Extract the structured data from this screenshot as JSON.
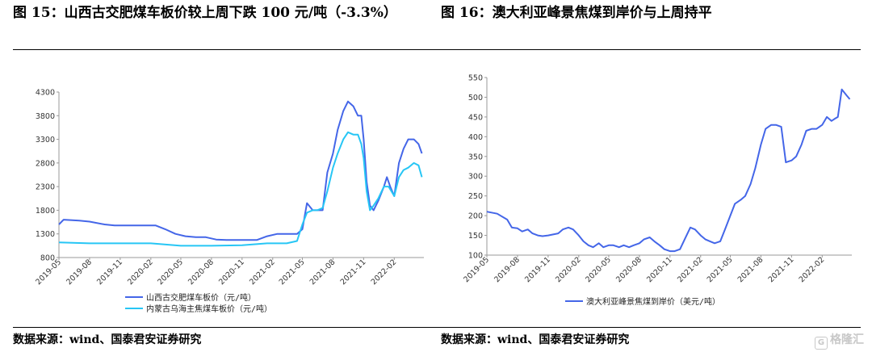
{
  "titles": {
    "left": "图 15：山西古交肥煤车板价较上周下跌 100 元/吨（-3.3%）",
    "right": "图 16：澳大利亚峰景焦煤到岸价与上周持平"
  },
  "sources": {
    "left": "数据来源：wind、国泰君安证券研究",
    "right": "数据来源：wind、国泰君安证券研究"
  },
  "watermark": {
    "icon": "gelonghui-logo-icon",
    "text": "格隆汇"
  },
  "chart_data": [
    {
      "type": "line",
      "ylim": [
        800,
        4300
      ],
      "yticks": [
        800,
        1300,
        1800,
        2300,
        2800,
        3300,
        3800,
        4300
      ],
      "xticks": [
        "2019-05",
        "2019-08",
        "2019-11",
        "2020-02",
        "2020-05",
        "2020-08",
        "2020-11",
        "2021-02",
        "2021-05",
        "2021-08",
        "2021-11",
        "2022-02"
      ],
      "grid": false,
      "legend": "bottom-left",
      "series": [
        {
          "name": "山西古交肥煤车板价（元/吨）",
          "color": "#4466e8",
          "x": [
            "2019-05-01",
            "2019-05-15",
            "2019-07-01",
            "2019-08-01",
            "2019-09-15",
            "2019-10-15",
            "2019-12-01",
            "2020-01-01",
            "2020-02-15",
            "2020-03-15",
            "2020-04-15",
            "2020-05-15",
            "2020-06-15",
            "2020-07-15",
            "2020-08-15",
            "2020-09-15",
            "2020-10-15",
            "2020-11-15",
            "2020-12-15",
            "2021-01-15",
            "2021-02-15",
            "2021-03-15",
            "2021-04-15",
            "2021-05-01",
            "2021-05-15",
            "2021-06-01",
            "2021-06-15",
            "2021-07-01",
            "2021-07-15",
            "2021-08-01",
            "2021-08-15",
            "2021-09-01",
            "2021-09-15",
            "2021-10-01",
            "2021-10-15",
            "2021-10-25",
            "2021-11-01",
            "2021-11-10",
            "2021-11-20",
            "2021-12-01",
            "2021-12-15",
            "2022-01-01",
            "2022-01-10",
            "2022-01-20",
            "2022-02-01",
            "2022-02-15",
            "2022-03-01",
            "2022-03-15",
            "2022-04-01",
            "2022-04-15",
            "2022-04-25"
          ],
          "values": [
            1500,
            1600,
            1580,
            1560,
            1500,
            1480,
            1480,
            1480,
            1480,
            1400,
            1300,
            1250,
            1230,
            1230,
            1180,
            1170,
            1170,
            1170,
            1170,
            1250,
            1300,
            1300,
            1300,
            1400,
            1950,
            1800,
            1800,
            1800,
            2600,
            3000,
            3500,
            3900,
            4100,
            4000,
            3800,
            3800,
            3300,
            2400,
            1900,
            1800,
            2000,
            2300,
            2500,
            2300,
            2100,
            2800,
            3100,
            3300,
            3300,
            3200,
            3000
          ]
        },
        {
          "name": "内蒙古乌海主焦煤车板价（元/吨）",
          "color": "#27c6f5",
          "x": [
            "2019-05-01",
            "2019-08-01",
            "2019-11-01",
            "2020-02-01",
            "2020-05-01",
            "2020-08-01",
            "2020-11-01",
            "2021-01-15",
            "2021-03-15",
            "2021-04-15",
            "2021-05-01",
            "2021-05-15",
            "2021-06-01",
            "2021-06-15",
            "2021-07-01",
            "2021-07-15",
            "2021-08-01",
            "2021-08-15",
            "2021-09-01",
            "2021-09-15",
            "2021-10-01",
            "2021-10-15",
            "2021-10-25",
            "2021-11-01",
            "2021-11-10",
            "2021-11-20",
            "2021-12-01",
            "2021-12-15",
            "2022-01-01",
            "2022-01-15",
            "2022-02-01",
            "2022-02-15",
            "2022-03-01",
            "2022-03-15",
            "2022-04-01",
            "2022-04-15",
            "2022-04-25"
          ],
          "values": [
            1120,
            1100,
            1100,
            1100,
            1050,
            1050,
            1060,
            1100,
            1100,
            1150,
            1500,
            1750,
            1800,
            1800,
            1850,
            2200,
            2700,
            3000,
            3300,
            3450,
            3400,
            3400,
            3200,
            2900,
            2200,
            1800,
            1900,
            2050,
            2300,
            2300,
            2100,
            2500,
            2650,
            2700,
            2800,
            2750,
            2500
          ]
        }
      ]
    },
    {
      "type": "line",
      "ylim": [
        100,
        550
      ],
      "yticks": [
        100,
        150,
        200,
        250,
        300,
        350,
        400,
        450,
        500,
        550
      ],
      "xticks": [
        "2019-05",
        "2019-08",
        "2019-11",
        "2020-02",
        "2020-05",
        "2020-08",
        "2020-11",
        "2021-02",
        "2021-05",
        "2021-08",
        "2021-11",
        "2022-02"
      ],
      "grid": false,
      "legend": "bottom",
      "series": [
        {
          "name": "澳大利亚峰景焦煤到岸价（美元/吨）",
          "color": "#4466e8",
          "x": [
            "2019-05-01",
            "2019-06-01",
            "2019-07-01",
            "2019-07-15",
            "2019-08-01",
            "2019-08-15",
            "2019-09-01",
            "2019-09-15",
            "2019-10-01",
            "2019-10-15",
            "2019-11-01",
            "2019-12-01",
            "2019-12-15",
            "2020-01-01",
            "2020-01-15",
            "2020-02-01",
            "2020-02-15",
            "2020-03-01",
            "2020-03-15",
            "2020-04-01",
            "2020-04-15",
            "2020-05-01",
            "2020-05-15",
            "2020-06-01",
            "2020-06-15",
            "2020-07-01",
            "2020-07-15",
            "2020-08-01",
            "2020-08-15",
            "2020-09-01",
            "2020-09-15",
            "2020-10-01",
            "2020-10-15",
            "2020-11-01",
            "2020-11-15",
            "2020-12-01",
            "2020-12-15",
            "2021-01-01",
            "2021-01-15",
            "2021-02-01",
            "2021-02-15",
            "2021-03-01",
            "2021-03-15",
            "2021-04-01",
            "2021-04-15",
            "2021-05-01",
            "2021-05-15",
            "2021-06-01",
            "2021-06-15",
            "2021-07-01",
            "2021-07-15",
            "2021-08-01",
            "2021-08-15",
            "2021-09-01",
            "2021-09-15",
            "2021-10-01",
            "2021-10-15",
            "2021-11-01",
            "2021-11-15",
            "2021-12-01",
            "2021-12-15",
            "2022-01-01",
            "2022-01-15",
            "2022-02-01",
            "2022-02-15",
            "2022-03-01",
            "2022-03-10",
            "2022-03-20",
            "2022-04-01",
            "2022-04-15",
            "2022-04-25"
          ],
          "values": [
            210,
            205,
            190,
            170,
            168,
            160,
            165,
            155,
            150,
            148,
            150,
            155,
            165,
            170,
            165,
            150,
            135,
            125,
            120,
            130,
            120,
            125,
            125,
            120,
            125,
            120,
            125,
            130,
            140,
            145,
            135,
            125,
            115,
            110,
            110,
            115,
            140,
            170,
            165,
            150,
            140,
            135,
            130,
            135,
            165,
            200,
            230,
            240,
            250,
            280,
            320,
            380,
            420,
            430,
            430,
            425,
            335,
            340,
            350,
            380,
            415,
            420,
            420,
            430,
            450,
            440,
            445,
            450,
            520,
            505,
            495
          ]
        }
      ]
    }
  ]
}
